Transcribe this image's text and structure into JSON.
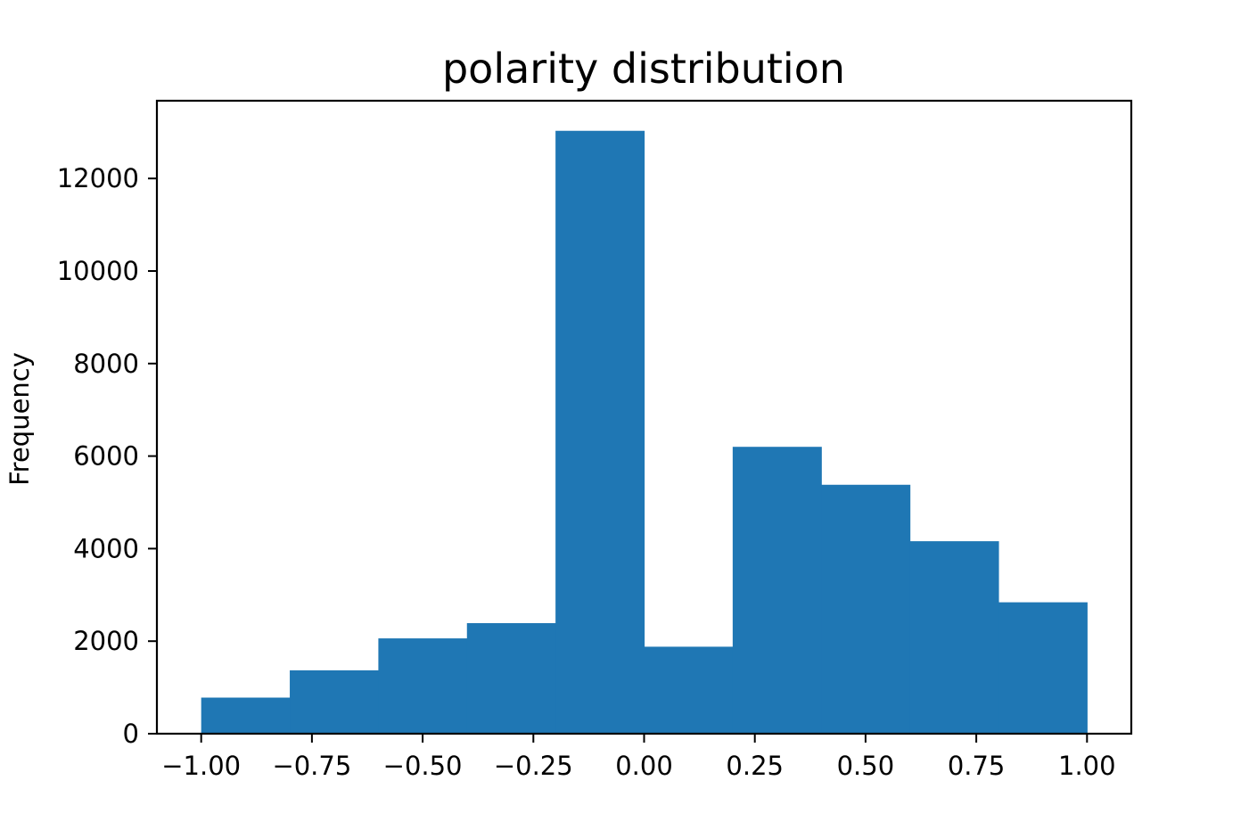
{
  "chart_data": {
    "type": "bar",
    "title": "polarity distribution",
    "xlabel": "",
    "ylabel": "Frequency",
    "bin_edges": [
      -1.0,
      -0.8,
      -0.6,
      -0.4,
      -0.2,
      0.0,
      0.2,
      0.4,
      0.6,
      0.8,
      1.0
    ],
    "values": [
      780,
      1370,
      2060,
      2390,
      13030,
      1880,
      6200,
      5380,
      4160,
      2840
    ],
    "xlim": [
      -1.1,
      1.1
    ],
    "ylim": [
      0,
      13680
    ],
    "x_ticks": [
      -1.0,
      -0.75,
      -0.5,
      -0.25,
      0.0,
      0.25,
      0.5,
      0.75,
      1.0
    ],
    "x_tick_labels": [
      "−1.00",
      "−0.75",
      "−0.50",
      "−0.25",
      "0.00",
      "0.25",
      "0.50",
      "0.75",
      "1.00"
    ],
    "y_ticks": [
      0,
      2000,
      4000,
      6000,
      8000,
      10000,
      12000
    ],
    "y_tick_labels": [
      "0",
      "2000",
      "4000",
      "6000",
      "8000",
      "10000",
      "12000"
    ],
    "bar_color": "#1f77b4",
    "grid": false,
    "legend": "none"
  }
}
